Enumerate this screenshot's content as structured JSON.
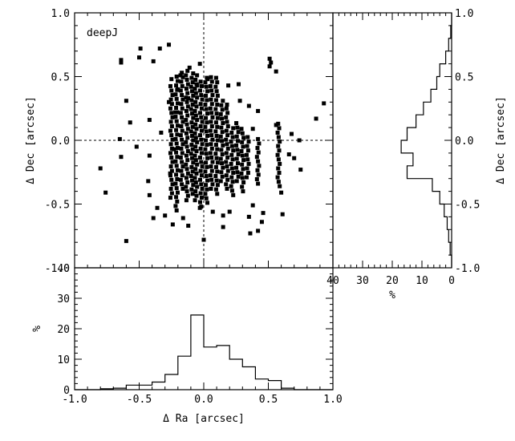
{
  "chart_data": [
    {
      "type": "scatter",
      "label": "deepJ",
      "xlabel": "Δ Ra [arcsec]",
      "ylabel": "Δ Dec [arcsec]",
      "xlim": [
        -1.0,
        1.0
      ],
      "ylim": [
        -1.0,
        1.0
      ],
      "reference_lines": {
        "x": 0.0,
        "y": 0.0
      },
      "marker_color": "#000000",
      "points": [
        [
          -0.27,
          0.75
        ],
        [
          -0.49,
          0.72
        ],
        [
          -0.34,
          0.72
        ],
        [
          -0.5,
          0.65
        ],
        [
          -0.64,
          0.63
        ],
        [
          -0.64,
          0.61
        ],
        [
          -0.39,
          0.62
        ],
        [
          0.51,
          0.64
        ],
        [
          0.52,
          0.61
        ],
        [
          0.51,
          0.58
        ],
        [
          0.56,
          0.54
        ],
        [
          -0.11,
          0.57
        ],
        [
          -0.03,
          0.6
        ],
        [
          -0.6,
          0.31
        ],
        [
          -0.27,
          0.3
        ],
        [
          -0.12,
          0.33
        ],
        [
          0.28,
          0.31
        ],
        [
          0.18,
          0.28
        ],
        [
          0.35,
          0.27
        ],
        [
          0.42,
          0.23
        ],
        [
          0.93,
          0.29
        ],
        [
          0.87,
          0.17
        ],
        [
          -0.57,
          0.14
        ],
        [
          -0.42,
          0.16
        ],
        [
          -0.8,
          -0.22
        ],
        [
          -0.76,
          -0.41
        ],
        [
          -0.65,
          0.01
        ],
        [
          -0.64,
          -0.13
        ],
        [
          -0.6,
          -0.79
        ],
        [
          -0.52,
          -0.05
        ],
        [
          -0.42,
          -0.12
        ],
        [
          -0.43,
          -0.32
        ],
        [
          -0.42,
          -0.43
        ],
        [
          -0.36,
          -0.53
        ],
        [
          -0.39,
          -0.61
        ],
        [
          -0.3,
          -0.59
        ],
        [
          -0.24,
          -0.66
        ],
        [
          -0.16,
          -0.61
        ],
        [
          -0.03,
          -0.53
        ],
        [
          0.07,
          -0.56
        ],
        [
          0.15,
          -0.59
        ],
        [
          0.2,
          -0.56
        ],
        [
          0.38,
          -0.51
        ],
        [
          0.35,
          -0.6
        ],
        [
          0.46,
          -0.57
        ],
        [
          0.45,
          -0.64
        ],
        [
          0.42,
          -0.71
        ],
        [
          0.61,
          -0.58
        ],
        [
          0.6,
          -0.41
        ],
        [
          0.7,
          -0.14
        ],
        [
          0.68,
          0.05
        ],
        [
          0.56,
          0.12
        ],
        [
          0.74,
          0.0
        ],
        [
          0.75,
          -0.23
        ],
        [
          0.66,
          -0.11
        ],
        [
          0.36,
          -0.73
        ],
        [
          0.15,
          -0.68
        ],
        [
          -0.12,
          -0.67
        ],
        [
          0.0,
          -0.78
        ],
        [
          -0.2,
          0.4
        ],
        [
          -0.25,
          0.48
        ],
        [
          -0.18,
          0.51
        ],
        [
          -0.05,
          0.43
        ],
        [
          0.03,
          0.48
        ],
        [
          0.19,
          0.43
        ],
        [
          0.27,
          0.44
        ],
        [
          0.38,
          0.09
        ],
        [
          -0.26,
          -0.26
        ],
        [
          -0.23,
          -0.07
        ],
        [
          -0.33,
          0.06
        ],
        [
          -0.22,
          0.22
        ]
      ],
      "columns": [
        {
          "x": -0.25,
          "y0": -0.45,
          "y1": 0.45
        },
        {
          "x": -0.21,
          "y0": -0.55,
          "y1": 0.53
        },
        {
          "x": -0.17,
          "y0": -0.38,
          "y1": 0.53
        },
        {
          "x": -0.13,
          "y0": -0.47,
          "y1": 0.55
        },
        {
          "x": -0.09,
          "y0": -0.42,
          "y1": 0.55
        },
        {
          "x": -0.06,
          "y0": -0.47,
          "y1": 0.52
        },
        {
          "x": -0.02,
          "y0": -0.52,
          "y1": 0.48
        },
        {
          "x": 0.02,
          "y0": -0.49,
          "y1": 0.5
        },
        {
          "x": 0.06,
          "y0": -0.38,
          "y1": 0.52
        },
        {
          "x": 0.1,
          "y0": -0.42,
          "y1": 0.5
        },
        {
          "x": 0.14,
          "y0": -0.32,
          "y1": 0.33
        },
        {
          "x": 0.18,
          "y0": -0.38,
          "y1": 0.26
        },
        {
          "x": 0.22,
          "y0": -0.43,
          "y1": 0.1
        },
        {
          "x": 0.26,
          "y0": -0.32,
          "y1": 0.15
        },
        {
          "x": 0.3,
          "y0": -0.4,
          "y1": 0.1
        },
        {
          "x": 0.34,
          "y0": -0.29,
          "y1": 0.05
        },
        {
          "x": 0.42,
          "y0": -0.34,
          "y1": 0.02
        },
        {
          "x": 0.58,
          "y0": -0.36,
          "y1": 0.15
        }
      ],
      "xticks": [
        "",
        "",
        "",
        "",
        ""
      ],
      "yticks": [
        "-1.0",
        "-0.5",
        "0.0",
        "0.5",
        "1.0"
      ]
    },
    {
      "type": "histogram",
      "orientation": "vertical",
      "xlabel": "Δ Ra [arcsec]",
      "ylabel": "%",
      "xlim": [
        -1.0,
        1.0
      ],
      "ylim": [
        0,
        40
      ],
      "bin_edges": [
        -1.0,
        -0.9,
        -0.8,
        -0.7,
        -0.6,
        -0.5,
        -0.4,
        -0.3,
        -0.2,
        -0.1,
        0.0,
        0.1,
        0.2,
        0.3,
        0.4,
        0.5,
        0.6,
        0.7,
        0.8,
        0.9,
        1.0
      ],
      "values": [
        0,
        0,
        0.3,
        0.5,
        1.5,
        1.5,
        2.5,
        5,
        11,
        24.5,
        14,
        14.5,
        10,
        7.5,
        3.5,
        3,
        0.5,
        0,
        0,
        0
      ],
      "xticks": [
        "-1.0",
        "-0.5",
        "0.0",
        "0.5",
        "1.0"
      ],
      "yticks": [
        "0",
        "10",
        "20",
        "30",
        "40"
      ]
    },
    {
      "type": "histogram",
      "orientation": "horizontal",
      "xlabel": "%",
      "ylabel": "Δ Dec [arcsec]",
      "xlim": [
        40,
        0
      ],
      "ylim": [
        -1.0,
        1.0
      ],
      "bin_edges": [
        -1.0,
        -0.9,
        -0.8,
        -0.7,
        -0.6,
        -0.5,
        -0.4,
        -0.3,
        -0.2,
        -0.1,
        0.0,
        0.1,
        0.2,
        0.3,
        0.4,
        0.5,
        0.6,
        0.7,
        0.8,
        0.9,
        1.0
      ],
      "values": [
        0,
        0.5,
        1,
        1.5,
        2.5,
        4,
        6.5,
        15,
        13,
        17,
        15,
        12,
        9.5,
        7,
        5,
        4,
        2,
        1,
        0.3,
        0
      ],
      "xticks": [
        "40",
        "30",
        "20",
        "10",
        "0"
      ],
      "yticks": [
        "-1.0",
        "-0.5",
        "0.0",
        "0.5",
        "1.0"
      ]
    }
  ]
}
